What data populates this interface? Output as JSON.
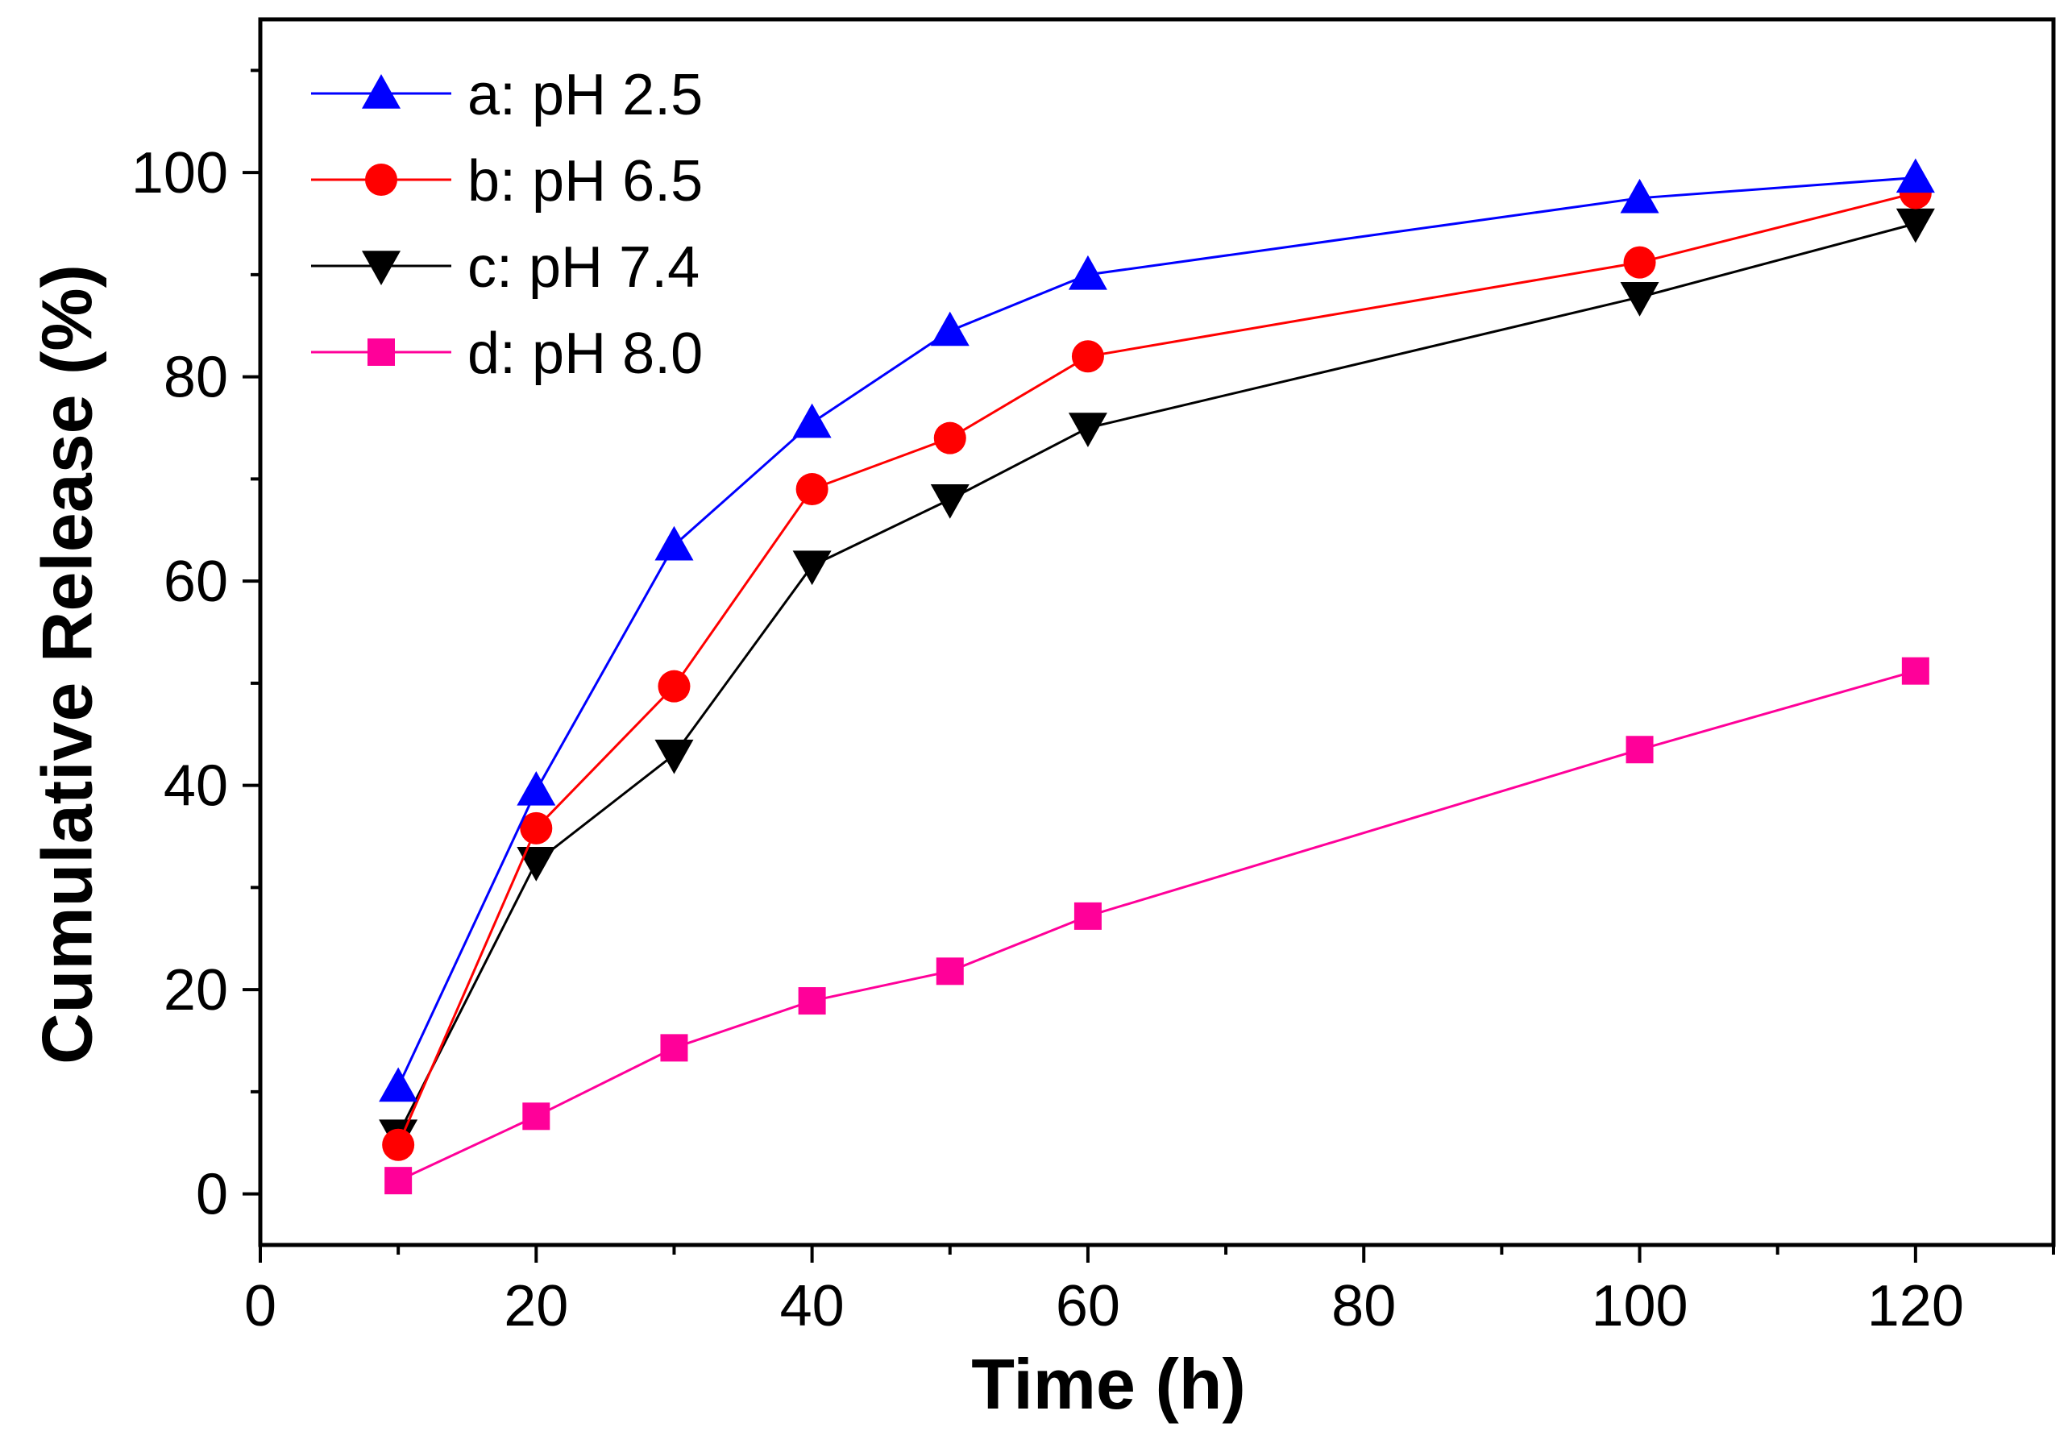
{
  "chart_data": {
    "type": "line",
    "title": "",
    "xlabel": "Time (h)",
    "ylabel": "Cumulative Release (%)",
    "xlim": [
      0,
      130
    ],
    "ylim": [
      -5,
      115
    ],
    "x_ticks": [
      0,
      20,
      40,
      60,
      80,
      100,
      120
    ],
    "x_tick_labels": [
      "0",
      "20",
      "40",
      "60",
      "80",
      "100",
      "120"
    ],
    "y_ticks": [
      0,
      20,
      40,
      60,
      80,
      100
    ],
    "y_tick_labels": [
      "0",
      "20",
      "40",
      "60",
      "80",
      "100"
    ],
    "x_minor_ticks": [
      10,
      30,
      50,
      70,
      90,
      110,
      130
    ],
    "y_minor_ticks": [
      10,
      30,
      50,
      70,
      90,
      110
    ],
    "grid": false,
    "legend_position": "top-left",
    "x": [
      10,
      20,
      30,
      40,
      50,
      60,
      100,
      120
    ],
    "series": [
      {
        "name": "a: pH 2.5",
        "color": "#0000FF",
        "marker": "triangle-up",
        "values": [
          10.5,
          39.5,
          63.5,
          75.5,
          84.5,
          90,
          97.5,
          99.5
        ]
      },
      {
        "name": "b: pH 6.5",
        "color": "#FF0000",
        "marker": "circle",
        "values": [
          4.8,
          35.8,
          49.7,
          69,
          74,
          82,
          91.2,
          98
        ]
      },
      {
        "name": "c: pH 7.4",
        "color": "#000000",
        "marker": "triangle-down",
        "values": [
          5.8,
          32.5,
          43,
          61.5,
          68,
          75,
          87.8,
          95
        ]
      },
      {
        "name": "d: pH 8.0",
        "color": "#FF0099",
        "marker": "square",
        "values": [
          1.3,
          7.6,
          14.3,
          18.9,
          21.8,
          27.2,
          43.5,
          51.2
        ]
      }
    ]
  }
}
